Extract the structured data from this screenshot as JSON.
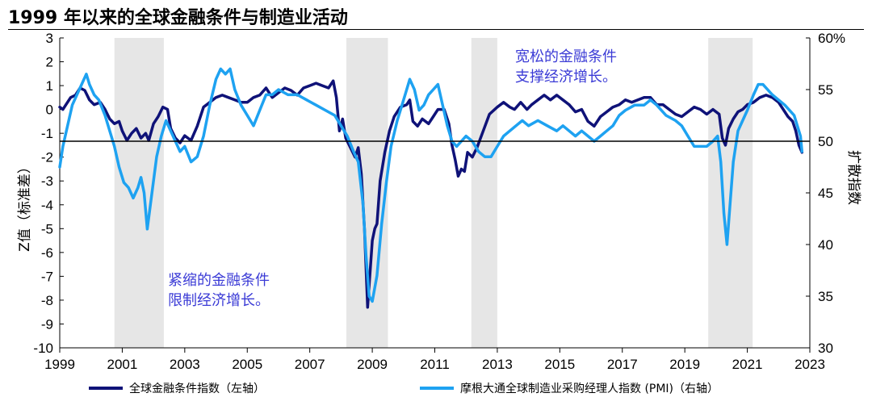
{
  "title": "1999 年以来的全球金融条件与制造业活动",
  "chart_data": {
    "type": "line",
    "title": "1999 年以来的全球金融条件与制造业活动",
    "x_ticks": [
      "1999",
      "2001",
      "2003",
      "2005",
      "2007",
      "2009",
      "2011",
      "2013",
      "2015",
      "2017",
      "2019",
      "2021",
      "2023"
    ],
    "xlim": [
      1999,
      2023
    ],
    "y_left": {
      "label": "Z值（标准差）",
      "lim": [
        -10,
        3
      ],
      "ticks": [
        "3",
        "2",
        "1",
        "0",
        "-1",
        "-2",
        "-3",
        "-4",
        "-5",
        "-6",
        "-7",
        "-8",
        "-9",
        "-10"
      ]
    },
    "y_right": {
      "label": "扩散指数",
      "lim": [
        30,
        60
      ],
      "ticks": [
        "60%",
        "55",
        "50",
        "45",
        "40",
        "35",
        "30"
      ]
    },
    "reference_line": {
      "axis": "right",
      "value": 50
    },
    "shaded_periods": [
      [
        2000.75,
        2002.33
      ],
      [
        2008.17,
        2009.5
      ],
      [
        2012.17,
        2013.0
      ],
      [
        2019.75,
        2021.17
      ]
    ],
    "annotations": [
      "紧缩的金融条件",
      "限制经济增长。",
      "宽松的金融条件",
      "支撑经济增长。"
    ],
    "series": [
      {
        "name": "全球金融条件指数（左轴）",
        "axis": "left",
        "color": "#0f1278",
        "points": [
          [
            1999.0,
            0.1
          ],
          [
            1999.1,
            0.0
          ],
          [
            1999.2,
            0.2
          ],
          [
            1999.35,
            0.5
          ],
          [
            1999.5,
            0.6
          ],
          [
            1999.65,
            0.9
          ],
          [
            1999.8,
            0.8
          ],
          [
            1999.95,
            0.4
          ],
          [
            2000.1,
            0.2
          ],
          [
            2000.3,
            0.3
          ],
          [
            2000.45,
            0.0
          ],
          [
            2000.6,
            -0.4
          ],
          [
            2000.75,
            -0.6
          ],
          [
            2000.9,
            -0.5
          ],
          [
            2001.0,
            -0.9
          ],
          [
            2001.15,
            -1.3
          ],
          [
            2001.3,
            -1.0
          ],
          [
            2001.45,
            -0.8
          ],
          [
            2001.6,
            -1.2
          ],
          [
            2001.75,
            -1.0
          ],
          [
            2001.85,
            -1.3
          ],
          [
            2002.0,
            -0.6
          ],
          [
            2002.15,
            -0.3
          ],
          [
            2002.3,
            0.1
          ],
          [
            2002.45,
            0.0
          ],
          [
            2002.55,
            -0.8
          ],
          [
            2002.7,
            -1.2
          ],
          [
            2002.85,
            -1.4
          ],
          [
            2003.0,
            -1.1
          ],
          [
            2003.2,
            -1.3
          ],
          [
            2003.4,
            -0.7
          ],
          [
            2003.6,
            0.1
          ],
          [
            2003.8,
            0.3
          ],
          [
            2004.0,
            0.5
          ],
          [
            2004.2,
            0.6
          ],
          [
            2004.4,
            0.5
          ],
          [
            2004.6,
            0.4
          ],
          [
            2004.8,
            0.3
          ],
          [
            2005.0,
            0.3
          ],
          [
            2005.2,
            0.5
          ],
          [
            2005.4,
            0.6
          ],
          [
            2005.6,
            0.9
          ],
          [
            2005.8,
            0.5
          ],
          [
            2006.0,
            0.7
          ],
          [
            2006.2,
            0.9
          ],
          [
            2006.4,
            0.8
          ],
          [
            2006.6,
            0.6
          ],
          [
            2006.8,
            0.9
          ],
          [
            2007.0,
            1.0
          ],
          [
            2007.2,
            1.1
          ],
          [
            2007.4,
            1.0
          ],
          [
            2007.6,
            0.9
          ],
          [
            2007.75,
            1.2
          ],
          [
            2007.85,
            0.5
          ],
          [
            2007.95,
            -0.9
          ],
          [
            2008.05,
            -0.4
          ],
          [
            2008.15,
            -1.2
          ],
          [
            2008.3,
            -1.6
          ],
          [
            2008.45,
            -2.0
          ],
          [
            2008.55,
            -1.6
          ],
          [
            2008.65,
            -2.7
          ],
          [
            2008.75,
            -5.0
          ],
          [
            2008.85,
            -8.3
          ],
          [
            2008.92,
            -7.0
          ],
          [
            2009.0,
            -5.5
          ],
          [
            2009.08,
            -5.0
          ],
          [
            2009.15,
            -4.8
          ],
          [
            2009.25,
            -3.0
          ],
          [
            2009.4,
            -1.8
          ],
          [
            2009.55,
            -0.9
          ],
          [
            2009.7,
            -0.3
          ],
          [
            2009.9,
            0.1
          ],
          [
            2010.1,
            0.2
          ],
          [
            2010.2,
            0.4
          ],
          [
            2010.3,
            -0.5
          ],
          [
            2010.45,
            -0.7
          ],
          [
            2010.6,
            -0.4
          ],
          [
            2010.8,
            -0.6
          ],
          [
            2010.95,
            -0.3
          ],
          [
            2011.1,
            0.0
          ],
          [
            2011.3,
            0.0
          ],
          [
            2011.45,
            -0.6
          ],
          [
            2011.55,
            -1.5
          ],
          [
            2011.65,
            -2.1
          ],
          [
            2011.75,
            -2.8
          ],
          [
            2011.85,
            -2.5
          ],
          [
            2011.95,
            -2.6
          ],
          [
            2012.05,
            -1.8
          ],
          [
            2012.2,
            -2.0
          ],
          [
            2012.35,
            -1.6
          ],
          [
            2012.55,
            -0.9
          ],
          [
            2012.75,
            -0.2
          ],
          [
            2013.0,
            0.1
          ],
          [
            2013.2,
            0.3
          ],
          [
            2013.4,
            0.1
          ],
          [
            2013.55,
            0.0
          ],
          [
            2013.75,
            0.3
          ],
          [
            2013.95,
            0.0
          ],
          [
            2014.1,
            0.2
          ],
          [
            2014.3,
            0.4
          ],
          [
            2014.5,
            0.6
          ],
          [
            2014.7,
            0.4
          ],
          [
            2014.9,
            0.6
          ],
          [
            2015.1,
            0.4
          ],
          [
            2015.3,
            0.2
          ],
          [
            2015.5,
            -0.1
          ],
          [
            2015.7,
            0.0
          ],
          [
            2015.9,
            -0.5
          ],
          [
            2016.1,
            -0.7
          ],
          [
            2016.3,
            -0.3
          ],
          [
            2016.5,
            -0.1
          ],
          [
            2016.7,
            0.1
          ],
          [
            2016.9,
            0.2
          ],
          [
            2017.1,
            0.4
          ],
          [
            2017.3,
            0.3
          ],
          [
            2017.5,
            0.4
          ],
          [
            2017.7,
            0.5
          ],
          [
            2017.9,
            0.5
          ],
          [
            2018.1,
            0.2
          ],
          [
            2018.3,
            0.2
          ],
          [
            2018.5,
            0.0
          ],
          [
            2018.7,
            -0.2
          ],
          [
            2018.9,
            -0.3
          ],
          [
            2019.1,
            -0.1
          ],
          [
            2019.3,
            0.1
          ],
          [
            2019.5,
            0.0
          ],
          [
            2019.7,
            -0.2
          ],
          [
            2019.9,
            0.0
          ],
          [
            2020.1,
            -0.2
          ],
          [
            2020.2,
            -1.2
          ],
          [
            2020.3,
            -1.5
          ],
          [
            2020.4,
            -0.8
          ],
          [
            2020.55,
            -0.4
          ],
          [
            2020.7,
            -0.1
          ],
          [
            2020.85,
            0.0
          ],
          [
            2021.0,
            0.2
          ],
          [
            2021.2,
            0.3
          ],
          [
            2021.4,
            0.5
          ],
          [
            2021.6,
            0.6
          ],
          [
            2021.8,
            0.5
          ],
          [
            2022.0,
            0.3
          ],
          [
            2022.15,
            0.0
          ],
          [
            2022.3,
            -0.3
          ],
          [
            2022.45,
            -0.5
          ],
          [
            2022.55,
            -0.9
          ],
          [
            2022.65,
            -1.5
          ],
          [
            2022.75,
            -1.8
          ]
        ]
      },
      {
        "name": "摩根大通全球制造业采购经理人指数 (PMI)（右轴）",
        "axis": "right",
        "color": "#1ea2f1",
        "points": [
          [
            1999.0,
            47.5
          ],
          [
            1999.1,
            49.5
          ],
          [
            1999.25,
            51.5
          ],
          [
            1999.4,
            53.5
          ],
          [
            1999.55,
            54.5
          ],
          [
            1999.7,
            55.5
          ],
          [
            1999.85,
            56.5
          ],
          [
            1999.95,
            55.5
          ],
          [
            2000.1,
            54.5
          ],
          [
            2000.25,
            54.0
          ],
          [
            2000.45,
            52.5
          ],
          [
            2000.6,
            51.0
          ],
          [
            2000.75,
            49.5
          ],
          [
            2000.9,
            47.5
          ],
          [
            2001.05,
            46.0
          ],
          [
            2001.2,
            45.5
          ],
          [
            2001.35,
            44.5
          ],
          [
            2001.5,
            45.5
          ],
          [
            2001.6,
            46.5
          ],
          [
            2001.7,
            45.0
          ],
          [
            2001.8,
            41.5
          ],
          [
            2001.95,
            45.0
          ],
          [
            2002.1,
            48.5
          ],
          [
            2002.25,
            50.5
          ],
          [
            2002.4,
            52.0
          ],
          [
            2002.55,
            51.0
          ],
          [
            2002.7,
            50.0
          ],
          [
            2002.85,
            49.0
          ],
          [
            2003.0,
            49.5
          ],
          [
            2003.2,
            48.0
          ],
          [
            2003.4,
            48.5
          ],
          [
            2003.6,
            50.5
          ],
          [
            2003.8,
            53.5
          ],
          [
            2004.0,
            56.0
          ],
          [
            2004.15,
            57.0
          ],
          [
            2004.3,
            56.5
          ],
          [
            2004.45,
            57.0
          ],
          [
            2004.6,
            55.0
          ],
          [
            2004.8,
            53.5
          ],
          [
            2005.0,
            52.5
          ],
          [
            2005.2,
            51.5
          ],
          [
            2005.4,
            53.0
          ],
          [
            2005.6,
            54.5
          ],
          [
            2005.8,
            54.5
          ],
          [
            2006.0,
            55.0
          ],
          [
            2006.3,
            54.5
          ],
          [
            2006.6,
            54.5
          ],
          [
            2006.9,
            54.0
          ],
          [
            2007.2,
            53.5
          ],
          [
            2007.5,
            53.0
          ],
          [
            2007.8,
            52.5
          ],
          [
            2008.0,
            51.5
          ],
          [
            2008.2,
            50.5
          ],
          [
            2008.4,
            49.0
          ],
          [
            2008.55,
            48.0
          ],
          [
            2008.7,
            44.0
          ],
          [
            2008.8,
            39.0
          ],
          [
            2008.9,
            35.0
          ],
          [
            2009.0,
            34.5
          ],
          [
            2009.15,
            37.0
          ],
          [
            2009.3,
            42.0
          ],
          [
            2009.45,
            46.0
          ],
          [
            2009.6,
            49.5
          ],
          [
            2009.8,
            52.0
          ],
          [
            2009.95,
            53.5
          ],
          [
            2010.1,
            55.0
          ],
          [
            2010.2,
            56.0
          ],
          [
            2010.35,
            55.0
          ],
          [
            2010.5,
            53.0
          ],
          [
            2010.65,
            53.5
          ],
          [
            2010.8,
            54.5
          ],
          [
            2010.95,
            55.0
          ],
          [
            2011.1,
            55.5
          ],
          [
            2011.25,
            53.5
          ],
          [
            2011.4,
            51.5
          ],
          [
            2011.55,
            50.0
          ],
          [
            2011.7,
            49.5
          ],
          [
            2011.85,
            50.0
          ],
          [
            2012.0,
            50.5
          ],
          [
            2012.2,
            50.0
          ],
          [
            2012.4,
            49.0
          ],
          [
            2012.6,
            48.5
          ],
          [
            2012.8,
            48.5
          ],
          [
            2013.0,
            49.5
          ],
          [
            2013.2,
            50.5
          ],
          [
            2013.4,
            51.0
          ],
          [
            2013.6,
            51.5
          ],
          [
            2013.8,
            52.0
          ],
          [
            2014.0,
            51.5
          ],
          [
            2014.3,
            52.0
          ],
          [
            2014.6,
            51.5
          ],
          [
            2014.9,
            51.0
          ],
          [
            2015.1,
            51.5
          ],
          [
            2015.3,
            51.0
          ],
          [
            2015.5,
            50.5
          ],
          [
            2015.7,
            51.0
          ],
          [
            2015.9,
            50.5
          ],
          [
            2016.1,
            50.0
          ],
          [
            2016.3,
            50.5
          ],
          [
            2016.5,
            51.0
          ],
          [
            2016.7,
            51.5
          ],
          [
            2016.9,
            52.5
          ],
          [
            2017.1,
            53.0
          ],
          [
            2017.4,
            53.5
          ],
          [
            2017.7,
            53.5
          ],
          [
            2017.9,
            54.0
          ],
          [
            2018.1,
            53.5
          ],
          [
            2018.4,
            52.5
          ],
          [
            2018.7,
            52.0
          ],
          [
            2018.9,
            51.5
          ],
          [
            2019.1,
            50.5
          ],
          [
            2019.3,
            49.5
          ],
          [
            2019.5,
            49.5
          ],
          [
            2019.7,
            49.5
          ],
          [
            2019.9,
            50.0
          ],
          [
            2020.05,
            50.5
          ],
          [
            2020.15,
            48.0
          ],
          [
            2020.25,
            43.0
          ],
          [
            2020.35,
            40.0
          ],
          [
            2020.45,
            44.0
          ],
          [
            2020.55,
            48.0
          ],
          [
            2020.7,
            51.0
          ],
          [
            2020.85,
            52.0
          ],
          [
            2021.0,
            53.0
          ],
          [
            2021.2,
            54.5
          ],
          [
            2021.35,
            55.5
          ],
          [
            2021.5,
            55.5
          ],
          [
            2021.65,
            55.0
          ],
          [
            2021.8,
            54.5
          ],
          [
            2022.0,
            54.0
          ],
          [
            2022.2,
            53.5
          ],
          [
            2022.35,
            53.0
          ],
          [
            2022.5,
            52.5
          ],
          [
            2022.6,
            51.5
          ],
          [
            2022.7,
            50.5
          ],
          [
            2022.75,
            49.0
          ]
        ]
      }
    ]
  }
}
